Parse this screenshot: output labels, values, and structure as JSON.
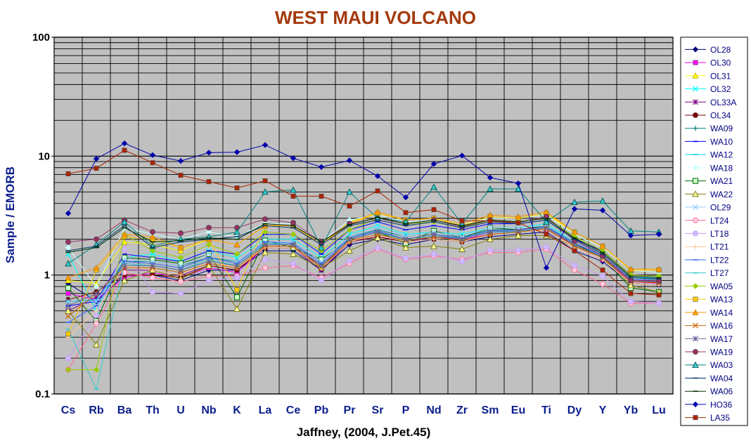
{
  "chart_data": {
    "type": "line",
    "title": "WEST MAUI VOLCANO",
    "xlabel": "Jaffney, (2004, J.Pet.45)",
    "ylabel": "Sample / EMORB",
    "yscale": "log",
    "ylim": [
      0.1,
      100
    ],
    "yticks": [
      "0.1",
      "1",
      "10",
      "100"
    ],
    "grid": true,
    "plot_background": "#c0c0c0",
    "legend_position": "right",
    "categories": [
      "Cs",
      "Rb",
      "Ba",
      "Th",
      "U",
      "Nb",
      "K",
      "La",
      "Ce",
      "Pb",
      "Pr",
      "Sr",
      "P",
      "Nd",
      "Zr",
      "Sm",
      "Eu",
      "Ti",
      "Dy",
      "Y",
      "Yb",
      "Lu"
    ],
    "series": [
      {
        "name": "OL28",
        "color": "#000080",
        "marker": "diamond",
        "values": [
          0.85,
          0.6,
          1.0,
          1.0,
          0.9,
          1.1,
          1.1,
          1.6,
          1.6,
          1.1,
          1.8,
          2.0,
          1.8,
          2.0,
          1.9,
          2.1,
          2.2,
          2.3,
          1.6,
          1.3,
          0.85,
          0.82
        ]
      },
      {
        "name": "OL30",
        "color": "#ff00ff",
        "marker": "square",
        "values": [
          0.7,
          0.62,
          0.95,
          1.05,
          0.95,
          1.15,
          1.05,
          1.7,
          1.7,
          1.15,
          1.9,
          2.1,
          1.9,
          2.1,
          2.0,
          2.2,
          2.3,
          2.4,
          1.7,
          1.35,
          0.88,
          0.85
        ]
      },
      {
        "name": "OL31",
        "color": "#ffff00",
        "marker": "triangle",
        "values": [
          0.9,
          0.85,
          1.9,
          1.8,
          1.6,
          2.0,
          1.8,
          2.6,
          2.6,
          1.8,
          2.8,
          3.3,
          2.9,
          3.0,
          2.6,
          3.1,
          3.0,
          3.3,
          2.2,
          1.7,
          1.1,
          1.1
        ]
      },
      {
        "name": "OL32",
        "color": "#00ffff",
        "marker": "x",
        "values": [
          1.5,
          0.5,
          1.4,
          1.5,
          1.3,
          1.6,
          1.4,
          2.0,
          2.0,
          1.4,
          2.2,
          2.6,
          2.2,
          2.3,
          2.2,
          2.5,
          2.5,
          2.7,
          1.9,
          1.5,
          0.95,
          0.95
        ]
      },
      {
        "name": "OL33A",
        "color": "#800080",
        "marker": "star",
        "values": [
          0.5,
          0.65,
          1.1,
          1.1,
          1.0,
          1.2,
          1.1,
          1.7,
          1.7,
          1.1,
          1.9,
          2.2,
          1.9,
          2.1,
          2.0,
          2.3,
          2.3,
          2.4,
          1.8,
          1.4,
          0.9,
          0.88
        ]
      },
      {
        "name": "OL34",
        "color": "#800000",
        "marker": "circle",
        "values": [
          0.62,
          0.72,
          1.0,
          1.0,
          0.95,
          1.2,
          1.1,
          1.7,
          1.7,
          1.2,
          1.9,
          2.1,
          1.9,
          2.0,
          1.9,
          2.2,
          2.3,
          2.5,
          1.8,
          1.4,
          0.9,
          0.87
        ]
      },
      {
        "name": "WA09",
        "color": "#008080",
        "marker": "plus",
        "values": [
          0.6,
          0.6,
          1.3,
          1.3,
          1.2,
          1.4,
          1.3,
          1.9,
          1.9,
          1.3,
          2.1,
          2.4,
          2.1,
          2.3,
          2.1,
          2.4,
          2.4,
          2.6,
          1.9,
          1.5,
          0.95,
          0.92
        ]
      },
      {
        "name": "WA10",
        "color": "#0000ff",
        "marker": "dash",
        "values": [
          0.55,
          0.6,
          1.5,
          1.4,
          1.3,
          1.6,
          1.5,
          2.2,
          2.2,
          1.5,
          2.4,
          2.8,
          2.4,
          2.6,
          2.4,
          2.7,
          2.7,
          2.9,
          2.0,
          1.6,
          1.0,
          0.98
        ]
      },
      {
        "name": "WA12",
        "color": "#00ccff",
        "marker": "dash",
        "values": [
          0.6,
          0.62,
          1.2,
          1.2,
          1.1,
          1.3,
          1.2,
          1.8,
          1.8,
          1.2,
          2.0,
          2.3,
          2.0,
          2.2,
          2.0,
          2.3,
          2.3,
          2.5,
          1.8,
          1.45,
          0.92,
          0.9
        ]
      },
      {
        "name": "WA18",
        "color": "#ccffff",
        "marker": "diamond",
        "values": [
          1.7,
          0.8,
          2.5,
          2.2,
          2.0,
          2.3,
          2.1,
          2.7,
          2.7,
          1.9,
          2.9,
          3.2,
          2.8,
          2.9,
          2.7,
          3.0,
          3.0,
          3.2,
          2.2,
          1.7,
          1.1,
          1.05
        ]
      },
      {
        "name": "WA21",
        "color": "#006600",
        "marker": "square-open",
        "values": [
          0.78,
          0.41,
          1.4,
          1.35,
          1.25,
          1.5,
          0.65,
          1.95,
          1.7,
          1.35,
          2.0,
          2.3,
          1.85,
          2.35,
          2.05,
          2.5,
          2.4,
          2.6,
          1.85,
          1.4,
          0.78,
          0.72
        ]
      },
      {
        "name": "WA22",
        "color": "#808000",
        "marker": "triangle-open",
        "values": [
          0.5,
          0.26,
          0.9,
          1.1,
          0.93,
          1.2,
          0.52,
          1.55,
          1.5,
          1.15,
          1.6,
          2.05,
          1.7,
          1.75,
          1.65,
          2.0,
          2.15,
          2.15,
          1.75,
          1.4,
          0.82,
          0.72
        ]
      },
      {
        "name": "OL29",
        "color": "#99ccff",
        "marker": "x",
        "values": [
          0.6,
          0.6,
          1.35,
          1.3,
          1.2,
          1.5,
          1.3,
          1.9,
          1.9,
          1.3,
          2.1,
          2.5,
          2.1,
          2.3,
          2.1,
          2.5,
          2.5,
          2.6,
          1.9,
          1.5,
          0.95,
          0.93
        ]
      },
      {
        "name": "LT24",
        "color": "#ff6699",
        "marker": "circle-open",
        "values": [
          0.16,
          0.39,
          1.05,
          0.95,
          0.88,
          0.98,
          0.98,
          1.15,
          1.2,
          0.95,
          1.25,
          1.65,
          1.35,
          1.45,
          1.35,
          1.55,
          1.55,
          1.65,
          1.1,
          0.84,
          0.58,
          0.58
        ]
      },
      {
        "name": "LT18",
        "color": "#cc99ff",
        "marker": "circle-open",
        "values": [
          0.2,
          0.46,
          1.65,
          0.72,
          0.7,
          0.9,
          0.95,
          1.35,
          1.25,
          0.9,
          1.32,
          1.7,
          1.38,
          1.5,
          1.3,
          1.62,
          1.62,
          1.72,
          1.2,
          0.98,
          0.6,
          0.58
        ]
      },
      {
        "name": "LT21",
        "color": "#ffcc99",
        "marker": "plus",
        "values": [
          0.3,
          0.5,
          1.2,
          1.1,
          1.0,
          1.3,
          1.15,
          1.7,
          1.7,
          1.15,
          1.9,
          2.2,
          1.9,
          2.0,
          1.9,
          2.2,
          2.3,
          2.4,
          1.7,
          1.35,
          0.85,
          0.82
        ]
      },
      {
        "name": "LT22",
        "color": "#3366ff",
        "marker": "dash",
        "values": [
          0.4,
          0.55,
          1.3,
          1.25,
          1.15,
          1.4,
          1.25,
          1.9,
          1.85,
          1.25,
          2.05,
          2.35,
          2.0,
          2.2,
          2.05,
          2.35,
          2.4,
          2.55,
          1.85,
          1.45,
          0.92,
          0.9
        ]
      },
      {
        "name": "LT27",
        "color": "#33cccc",
        "marker": "dash",
        "values": [
          0.35,
          0.11,
          1.25,
          1.2,
          1.1,
          1.35,
          1.2,
          1.85,
          1.8,
          1.2,
          2.0,
          2.3,
          1.95,
          2.15,
          2.0,
          2.3,
          2.35,
          2.5,
          1.8,
          1.42,
          0.9,
          0.88
        ]
      },
      {
        "name": "WA05",
        "color": "#99cc00",
        "marker": "diamond",
        "values": [
          0.16,
          0.16,
          2.2,
          1.6,
          1.4,
          1.8,
          1.5,
          2.3,
          2.2,
          1.6,
          2.4,
          3.0,
          2.7,
          2.8,
          2.5,
          2.9,
          2.8,
          3.0,
          2.1,
          1.6,
          1.0,
          0.98
        ]
      },
      {
        "name": "WA13",
        "color": "#ffcc00",
        "marker": "square",
        "values": [
          0.32,
          1.1,
          2.1,
          2.0,
          1.7,
          2.0,
          0.75,
          2.6,
          2.6,
          1.8,
          2.7,
          3.3,
          2.9,
          3.0,
          2.6,
          3.1,
          3.0,
          3.3,
          2.3,
          1.75,
          1.1,
          1.1
        ]
      },
      {
        "name": "WA14",
        "color": "#ff9900",
        "marker": "triangle",
        "values": [
          0.95,
          1.15,
          2.2,
          2.1,
          1.7,
          2.0,
          1.8,
          2.6,
          2.6,
          1.8,
          2.7,
          3.4,
          2.9,
          3.0,
          2.7,
          3.2,
          3.1,
          3.4,
          2.3,
          1.75,
          1.12,
          1.12
        ]
      },
      {
        "name": "WA16",
        "color": "#cc6600",
        "marker": "x",
        "values": [
          0.45,
          0.7,
          1.15,
          1.15,
          1.05,
          1.25,
          1.15,
          1.75,
          1.75,
          1.15,
          1.95,
          2.2,
          1.95,
          2.1,
          1.95,
          2.2,
          2.3,
          2.45,
          1.75,
          1.4,
          0.88,
          0.86
        ]
      },
      {
        "name": "WA17",
        "color": "#666699",
        "marker": "star",
        "values": [
          0.55,
          0.7,
          1.2,
          1.2,
          1.1,
          1.3,
          1.2,
          1.8,
          1.8,
          1.2,
          2.0,
          2.3,
          2.0,
          2.2,
          2.0,
          2.3,
          2.35,
          2.5,
          1.8,
          1.42,
          0.9,
          0.88
        ]
      },
      {
        "name": "WA19",
        "color": "#993366",
        "marker": "circle",
        "values": [
          1.9,
          2.0,
          2.9,
          2.3,
          2.25,
          2.5,
          2.5,
          2.95,
          2.75,
          1.9,
          2.7,
          3.0,
          2.7,
          2.9,
          2.55,
          2.9,
          2.75,
          3.1,
          1.95,
          1.45,
          0.9,
          0.9
        ]
      },
      {
        "name": "WA03",
        "color": "#008080",
        "marker": "triangle-open",
        "values": [
          1.25,
          1.8,
          2.8,
          1.75,
          2.0,
          2.1,
          2.3,
          5.0,
          5.2,
          1.7,
          5.0,
          3.0,
          2.8,
          5.5,
          2.7,
          5.3,
          5.3,
          2.8,
          4.1,
          4.2,
          2.35,
          2.3
        ]
      },
      {
        "name": "WA04",
        "color": "#003366",
        "marker": "dash",
        "values": [
          1.6,
          1.75,
          2.6,
          1.7,
          1.9,
          2.0,
          2.1,
          2.6,
          2.5,
          1.8,
          2.6,
          2.9,
          2.6,
          2.8,
          2.5,
          2.8,
          2.7,
          2.9,
          2.0,
          1.5,
          0.95,
          0.93
        ]
      },
      {
        "name": "WA06",
        "color": "#003300",
        "marker": "dash",
        "values": [
          1.55,
          1.7,
          2.5,
          1.9,
          1.95,
          2.05,
          2.0,
          2.7,
          2.6,
          1.9,
          2.65,
          3.05,
          2.7,
          2.9,
          2.6,
          2.9,
          2.8,
          3.0,
          2.05,
          1.55,
          0.98,
          0.95
        ]
      },
      {
        "name": "HO36",
        "color": "#0000aa",
        "marker": "diamond",
        "values": [
          3.3,
          9.5,
          12.8,
          10.2,
          9.1,
          10.7,
          10.8,
          12.4,
          9.6,
          8.1,
          9.2,
          6.8,
          4.5,
          8.6,
          10.1,
          6.6,
          5.9,
          1.15,
          3.6,
          3.5,
          2.15,
          2.2
        ]
      },
      {
        "name": "LA35",
        "color": "#aa2200",
        "marker": "square",
        "values": [
          7.1,
          7.9,
          11.2,
          8.8,
          6.9,
          6.1,
          5.4,
          6.2,
          4.6,
          4.6,
          3.8,
          5.1,
          3.35,
          3.55,
          2.85,
          2.85,
          2.75,
          2.2,
          1.6,
          1.1,
          0.7,
          0.68
        ]
      }
    ]
  }
}
